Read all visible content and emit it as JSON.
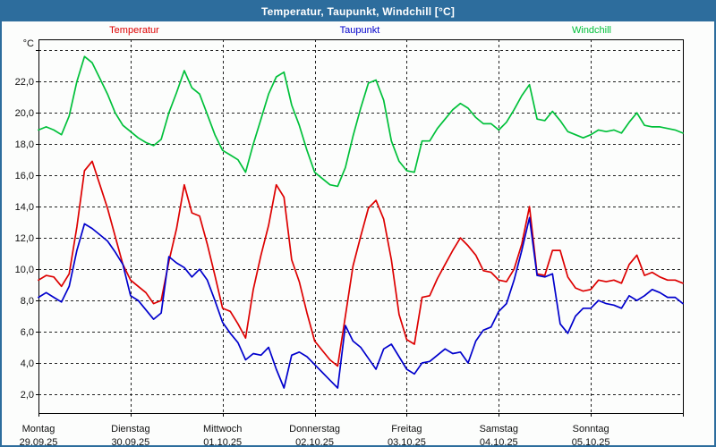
{
  "window": {
    "title": "Temperatur, Taupunkt, Windchill [°C]"
  },
  "legend": [
    {
      "label": "Temperatur",
      "color": "#dd0000"
    },
    {
      "label": "Taupunkt",
      "color": "#0000cc"
    },
    {
      "label": "Windchill",
      "color": "#00c03a"
    }
  ],
  "y_axis": {
    "unit": "°C",
    "tick_values": [
      22,
      20,
      18,
      16,
      14,
      12,
      10,
      8,
      6,
      4,
      2
    ],
    "tick_labels": [
      "22,0",
      "20,0",
      "18,0",
      "16,0",
      "14,0",
      "12,0",
      "10,0",
      "8,0",
      "6,0",
      "4,0",
      "2,0"
    ]
  },
  "x_axis": {
    "days": [
      {
        "name": "Montag",
        "date": "29.09.25"
      },
      {
        "name": "Dienstag",
        "date": "30.09.25"
      },
      {
        "name": "Mittwoch",
        "date": "01.10.25"
      },
      {
        "name": "Donnerstag",
        "date": "02.10.25"
      },
      {
        "name": "Freitag",
        "date": "03.10.25"
      },
      {
        "name": "Samstag",
        "date": "04.10.25"
      },
      {
        "name": "Sonntag",
        "date": "05.10.25"
      }
    ]
  },
  "chart_data": {
    "type": "line",
    "title": "Temperatur, Taupunkt, Windchill [°C]",
    "xlabel": "",
    "ylabel": "°C",
    "ylim": [
      0.8,
      24.7
    ],
    "x_range_hours": [
      0,
      168
    ],
    "x_step_hours": 2,
    "grid": "on",
    "gridline_values": [
      2,
      4,
      6,
      8,
      10,
      12,
      14,
      16,
      18,
      20,
      22,
      24
    ],
    "legend_position": "top",
    "series": [
      {
        "name": "Temperatur",
        "color": "#dd0000",
        "values": [
          9.3,
          9.6,
          9.5,
          8.9,
          9.7,
          12.7,
          16.3,
          16.9,
          15.4,
          13.9,
          12.1,
          10.3,
          9.3,
          8.9,
          8.5,
          7.8,
          8.0,
          10.5,
          12.6,
          15.4,
          13.6,
          13.4,
          11.6,
          9.6,
          7.5,
          7.3,
          6.5,
          5.6,
          8.7,
          10.9,
          12.8,
          15.4,
          14.6,
          10.6,
          9.2,
          7.2,
          5.4,
          4.8,
          4.2,
          3.8,
          7.0,
          10.2,
          12.1,
          13.9,
          14.4,
          13.2,
          10.6,
          7.1,
          5.5,
          5.2,
          8.2,
          8.3,
          9.4,
          10.3,
          11.2,
          12.0,
          11.5,
          10.9,
          9.9,
          9.8,
          9.3,
          9.2,
          10.0,
          11.6,
          14.0,
          9.7,
          9.6,
          11.2,
          11.2,
          9.5,
          8.8,
          8.6,
          8.7,
          9.3,
          9.2,
          9.3,
          9.1,
          10.3,
          10.9,
          9.6,
          9.8,
          9.5,
          9.3,
          9.3,
          9.1
        ]
      },
      {
        "name": "Taupunkt",
        "color": "#0000cc",
        "values": [
          8.2,
          8.5,
          8.2,
          7.9,
          8.9,
          11.2,
          12.9,
          12.6,
          12.2,
          11.8,
          11.1,
          10.3,
          8.3,
          8.0,
          7.4,
          6.8,
          7.2,
          10.8,
          10.4,
          10.1,
          9.5,
          10.0,
          9.3,
          8.0,
          6.6,
          5.9,
          5.3,
          4.2,
          4.6,
          4.5,
          5.0,
          3.6,
          2.4,
          4.5,
          4.7,
          4.4,
          3.9,
          3.4,
          2.9,
          2.4,
          6.4,
          5.4,
          5.0,
          4.3,
          3.6,
          4.9,
          5.2,
          4.4,
          3.6,
          3.3,
          4.0,
          4.1,
          4.5,
          4.9,
          4.6,
          4.7,
          4.0,
          5.4,
          6.1,
          6.3,
          7.3,
          7.8,
          9.3,
          11.2,
          13.3,
          9.6,
          9.5,
          9.7,
          6.5,
          5.9,
          7.0,
          7.5,
          7.5,
          8.0,
          7.8,
          7.7,
          7.5,
          8.3,
          8.0,
          8.3,
          8.7,
          8.5,
          8.2,
          8.2,
          7.8
        ]
      },
      {
        "name": "Windchill",
        "color": "#00c03a",
        "values": [
          18.9,
          19.1,
          18.9,
          18.6,
          19.8,
          22.0,
          23.6,
          23.2,
          22.2,
          21.2,
          20.0,
          19.2,
          18.8,
          18.4,
          18.1,
          17.9,
          18.3,
          20.0,
          21.3,
          22.7,
          21.6,
          21.2,
          19.9,
          18.6,
          17.6,
          17.3,
          17.0,
          16.2,
          18.0,
          19.6,
          21.2,
          22.3,
          22.6,
          20.5,
          19.2,
          17.6,
          16.2,
          15.8,
          15.4,
          15.3,
          16.5,
          18.5,
          20.3,
          21.9,
          22.1,
          20.8,
          18.2,
          16.9,
          16.3,
          16.2,
          18.2,
          18.2,
          19.0,
          19.6,
          20.2,
          20.6,
          20.3,
          19.7,
          19.3,
          19.3,
          18.9,
          19.4,
          20.2,
          21.1,
          21.8,
          19.6,
          19.5,
          20.1,
          19.5,
          18.8,
          18.6,
          18.4,
          18.6,
          18.9,
          18.8,
          18.9,
          18.7,
          19.4,
          20.0,
          19.2,
          19.1,
          19.1,
          19.0,
          18.9,
          18.7
        ]
      }
    ]
  }
}
